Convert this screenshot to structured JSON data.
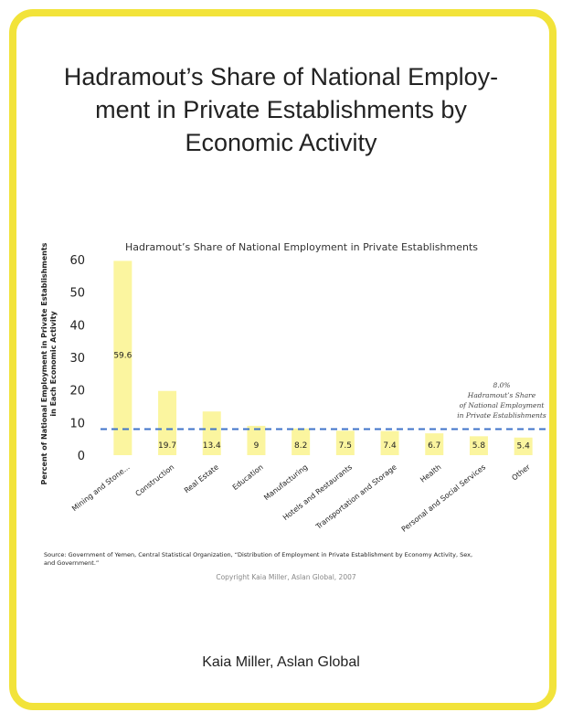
{
  "page": {
    "title": "Hadramout’s Share of National Employ-ment in Private Establishments by Economic Activity",
    "title_lines": [
      "Hadramout’s Share of National Employ-",
      "ment in Private Establishments by",
      "Economic Activity"
    ],
    "credit": "Kaia Miller, Aslan Global",
    "frame_color": "#f2e33a"
  },
  "chart_data": {
    "type": "bar",
    "title": "Hadramout’s Share of National Employment in Private Establishments",
    "ylabel_lines": [
      "Percent of National Employment in Private Establishments",
      "in Each Economic Activity"
    ],
    "xlabel": "",
    "ylim": [
      0,
      60
    ],
    "yticks": [
      0,
      10,
      20,
      30,
      40,
      50,
      60
    ],
    "categories": [
      "Mining and Stone...",
      "Construction",
      "Real Estate",
      "Education",
      "Manufacturing",
      "Hotels and Restaurants",
      "Transportation and Storage",
      "Health",
      "Personal and Social Services",
      "Other"
    ],
    "values": [
      59.6,
      19.7,
      13.4,
      9,
      8.2,
      7.5,
      7.4,
      6.7,
      5.8,
      5.4
    ],
    "value_labels": [
      "59.6",
      "19.7",
      "13.4",
      "9",
      "8.2",
      "7.5",
      "7.4",
      "6.7",
      "5.8",
      "5.4"
    ],
    "bar_color": "#fbf59f",
    "reference_line": {
      "value": 8.0,
      "color": "#3f73c9",
      "label_lines": [
        "8.0%",
        "Hadramout’s Share",
        "of National Employment",
        "in Private Establishments"
      ]
    },
    "grid": false,
    "legend": "none",
    "source_lines": [
      "Source:  Government of Yemen, Central Statistical Organization, “Distribution of Employment in Private Establishment by Economy Activity, Sex,",
      "and Government.”"
    ],
    "copyright": "Copyright Kaia Miller, Aslan Global, 2007"
  }
}
